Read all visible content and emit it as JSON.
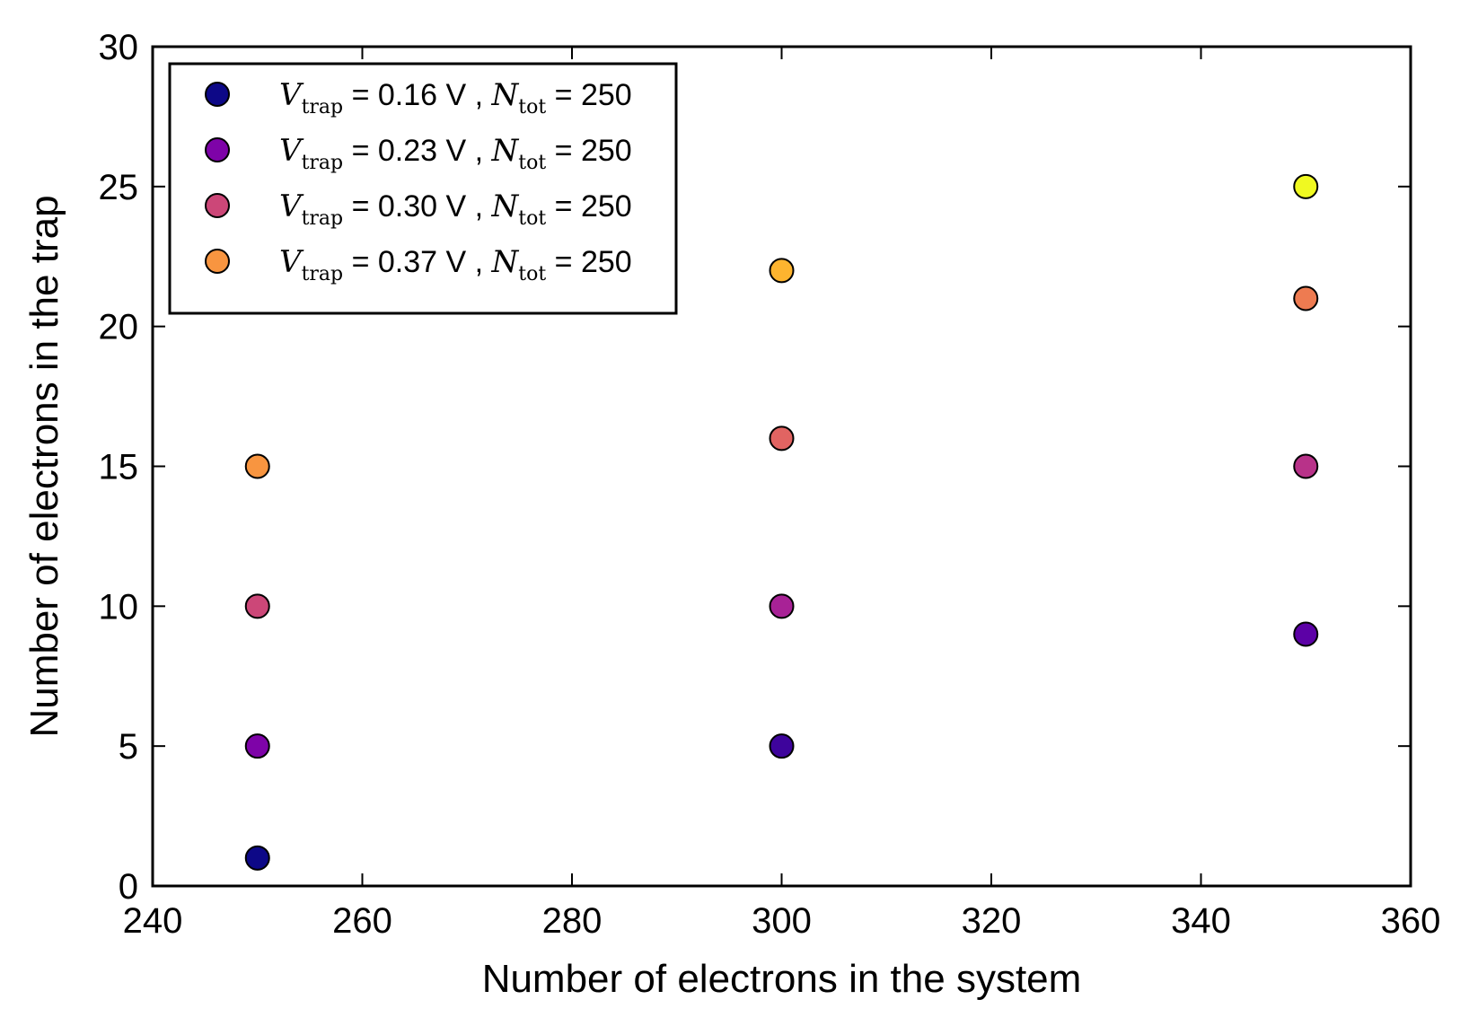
{
  "chart_data": {
    "type": "scatter",
    "title": "",
    "xlabel": "Number of electrons in the system",
    "ylabel": "Number of electrons in the trap",
    "xlim": [
      240,
      360
    ],
    "ylim": [
      0,
      30
    ],
    "xticks": [
      240,
      260,
      280,
      300,
      320,
      340,
      360
    ],
    "yticks": [
      0,
      5,
      10,
      15,
      20,
      25,
      30
    ],
    "grid": false,
    "legend_position": "top-left",
    "legend": [
      {
        "var": "V",
        "var_sub": "trap",
        "value_text": " = 0.16 V , ",
        "ntot": "N",
        "ntot_sub": "tot",
        "ntot_text": " = 250",
        "color": "#0d0887"
      },
      {
        "var": "V",
        "var_sub": "trap",
        "value_text": " = 0.23 V , ",
        "ntot": "N",
        "ntot_sub": "tot",
        "ntot_text": " = 250",
        "color": "#7e03a8"
      },
      {
        "var": "V",
        "var_sub": "trap",
        "value_text": " = 0.30 V , ",
        "ntot": "N",
        "ntot_sub": "tot",
        "ntot_text": " = 250",
        "color": "#cc4778"
      },
      {
        "var": "V",
        "var_sub": "trap",
        "value_text": " = 0.37 V , ",
        "ntot": "N",
        "ntot_sub": "tot",
        "ntot_text": " = 250",
        "color": "#f89540"
      }
    ],
    "points": [
      {
        "x": 250,
        "y": 1,
        "color": "#0d0887"
      },
      {
        "x": 250,
        "y": 5,
        "color": "#7e03a8"
      },
      {
        "x": 250,
        "y": 10,
        "color": "#cc4778"
      },
      {
        "x": 250,
        "y": 15,
        "color": "#f89540"
      },
      {
        "x": 300,
        "y": 5,
        "color": "#3e049c"
      },
      {
        "x": 300,
        "y": 10,
        "color": "#a82296"
      },
      {
        "x": 300,
        "y": 16,
        "color": "#e16462"
      },
      {
        "x": 300,
        "y": 22,
        "color": "#fdb42f"
      },
      {
        "x": 350,
        "y": 9,
        "color": "#5c01a6"
      },
      {
        "x": 350,
        "y": 15,
        "color": "#b83289"
      },
      {
        "x": 350,
        "y": 21,
        "color": "#ee7b51"
      },
      {
        "x": 350,
        "y": 25,
        "color": "#f0f921"
      }
    ]
  }
}
